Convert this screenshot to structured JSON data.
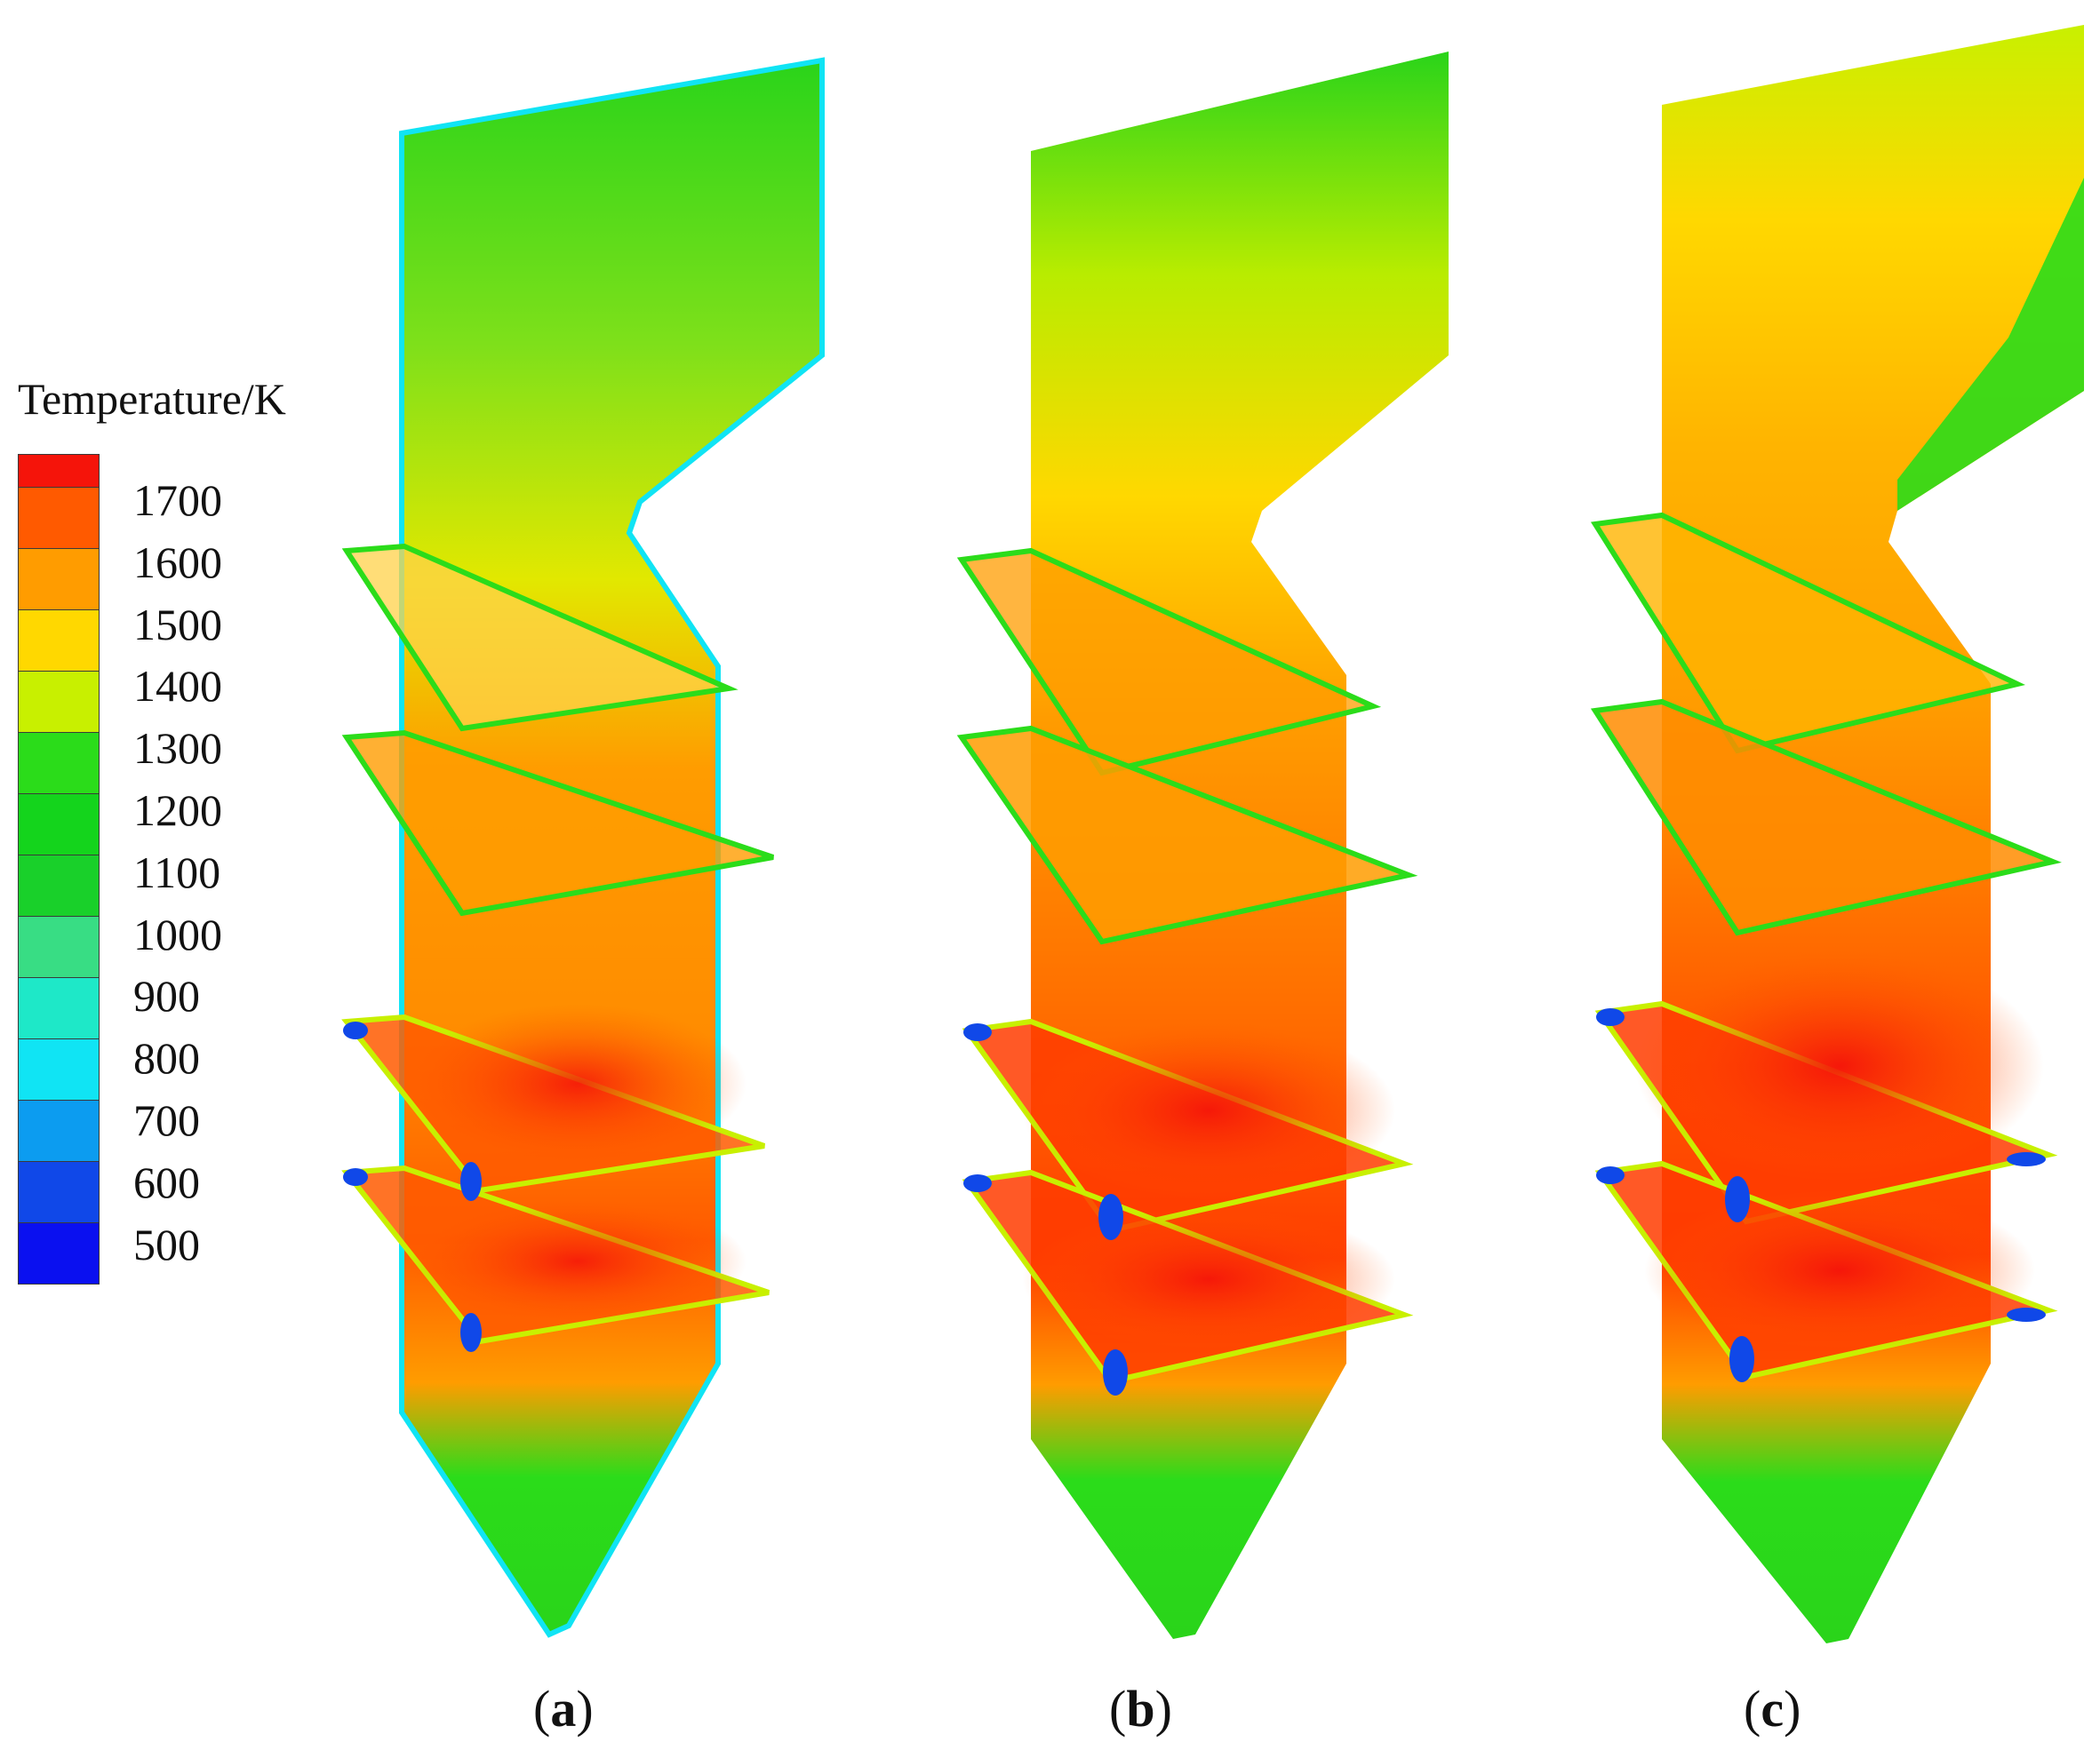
{
  "legend": {
    "title": "Temperature/K",
    "labels": [
      "1700",
      "1600",
      "1500",
      "1400",
      "1300",
      "1200",
      "1100",
      "1000",
      "900",
      "800",
      "700",
      "600",
      "500"
    ],
    "colors": [
      "#f5140a",
      "#ff5a00",
      "#ff9c00",
      "#ffd800",
      "#c8f000",
      "#2bdc1a",
      "#14d41c",
      "#19d02a",
      "#38dd84",
      "#1ee8c8",
      "#10e4f4",
      "#0c9cf0",
      "#1048e8",
      "#0a10f0"
    ]
  },
  "panels": [
    {
      "caption_open": "(",
      "caption_letter": "a",
      "caption_close": ")"
    },
    {
      "caption_open": "(",
      "caption_letter": "b",
      "caption_close": ")"
    },
    {
      "caption_open": "(",
      "caption_letter": "c",
      "caption_close": ")"
    }
  ]
}
